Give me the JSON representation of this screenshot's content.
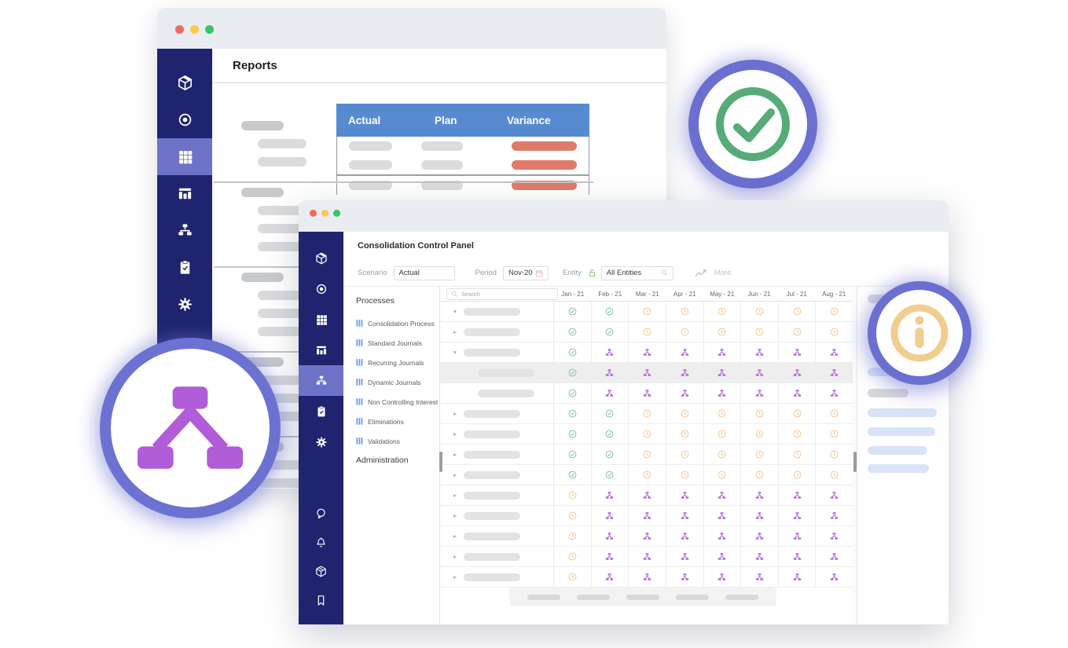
{
  "colors": {
    "sidebar_navy": "#20246e",
    "sidebar_active": "#6e73c8",
    "ring_purple": "#6a6fd0",
    "check_green": "#57ab79",
    "info_orange": "#f2cd90",
    "badge_purple": "#b15cd9",
    "table_header_blue": "#568bd2",
    "variance_salmon": "#e07b69",
    "status_check": "#7cc398",
    "status_clock": "#f3c78f",
    "status_hier": "#b269dd",
    "process_icon": "#6f9ceb",
    "traffic_red": "#f2695e",
    "traffic_yellow": "#fbc94b",
    "traffic_green": "#35c56d"
  },
  "back_window": {
    "page_title": "Reports",
    "sidebar_icons": [
      "cube",
      "target",
      "grid",
      "columns",
      "hierarchy",
      "clipboard",
      "gear"
    ],
    "sidebar_active_index": 2,
    "table_headers": [
      "Actual",
      "Plan",
      "Variance"
    ],
    "placeholder_sections": [
      2,
      3,
      3,
      3,
      2
    ],
    "table_row_count": 3
  },
  "front_window": {
    "page_title": "Consolidation Control Panel",
    "toolbar": {
      "scenario_label": "Scenario",
      "scenario_value": "Actual",
      "period_label": "Period",
      "period_value": "Nov-20",
      "entity_label": "Entity",
      "entity_value": "All Entities",
      "more_label": "More"
    },
    "sidebar_icons_top": [
      "cube",
      "target",
      "grid",
      "columns",
      "hierarchy",
      "clipboard",
      "gear"
    ],
    "sidebar_active_index": 4,
    "sidebar_icons_bottom": [
      "chat",
      "bell",
      "box",
      "bookmark"
    ],
    "processes": {
      "section_title": "Processes",
      "items": [
        "Consolidation Process",
        "Standard Journals",
        "Recurring Journals",
        "Dynamic Journals",
        "Non Controlling Interest",
        "Eliminations",
        "Validations"
      ],
      "admin_title": "Administration"
    },
    "grid": {
      "search_placeholder": "Search",
      "month_columns": [
        "Jan - 21",
        "Feb - 21",
        "Mar - 21",
        "Apr - 21",
        "May - 21",
        "Jun - 21",
        "Jul - 21",
        "Aug - 21"
      ],
      "pagination_pill_count": 5,
      "rows": [
        {
          "arrow": "down",
          "indent": 0,
          "selected": false,
          "statuses": [
            "check",
            "check",
            "clock",
            "clock",
            "clock",
            "clock",
            "clock",
            "clock"
          ]
        },
        {
          "arrow": "right",
          "indent": 0,
          "selected": false,
          "statuses": [
            "check",
            "check",
            "clock",
            "clock",
            "clock",
            "clock",
            "clock",
            "clock"
          ]
        },
        {
          "arrow": "down",
          "indent": 0,
          "selected": false,
          "statuses": [
            "check",
            "hier",
            "hier",
            "hier",
            "hier",
            "hier",
            "hier",
            "hier"
          ]
        },
        {
          "arrow": "none",
          "indent": 1,
          "selected": true,
          "statuses": [
            "check",
            "hier",
            "hier",
            "hier",
            "hier",
            "hier",
            "hier",
            "hier"
          ]
        },
        {
          "arrow": "none",
          "indent": 1,
          "selected": false,
          "statuses": [
            "check",
            "hier",
            "hier",
            "hier",
            "hier",
            "hier",
            "hier",
            "hier"
          ]
        },
        {
          "arrow": "right",
          "indent": 0,
          "selected": false,
          "statuses": [
            "check",
            "check",
            "clock",
            "clock",
            "clock",
            "clock",
            "clock",
            "clock"
          ]
        },
        {
          "arrow": "right",
          "indent": 0,
          "selected": false,
          "statuses": [
            "check",
            "check",
            "clock",
            "clock",
            "clock",
            "clock",
            "clock",
            "clock"
          ]
        },
        {
          "arrow": "right",
          "indent": 0,
          "selected": false,
          "statuses": [
            "check",
            "check",
            "clock",
            "clock",
            "clock",
            "clock",
            "clock",
            "clock"
          ]
        },
        {
          "arrow": "right",
          "indent": 0,
          "selected": false,
          "statuses": [
            "check",
            "check",
            "clock",
            "clock",
            "clock",
            "clock",
            "clock",
            "clock"
          ]
        },
        {
          "arrow": "right",
          "indent": 0,
          "selected": false,
          "statuses": [
            "clock",
            "hier",
            "hier",
            "hier",
            "hier",
            "hier",
            "hier",
            "hier"
          ]
        },
        {
          "arrow": "right",
          "indent": 0,
          "selected": false,
          "statuses": [
            "clock",
            "hier",
            "hier",
            "hier",
            "hier",
            "hier",
            "hier",
            "hier"
          ]
        },
        {
          "arrow": "right",
          "indent": 0,
          "selected": false,
          "statuses": [
            "clock",
            "hier",
            "hier",
            "hier",
            "hier",
            "hier",
            "hier",
            "hier"
          ]
        },
        {
          "arrow": "right",
          "indent": 0,
          "selected": false,
          "statuses": [
            "clock",
            "hier",
            "hier",
            "hier",
            "hier",
            "hier",
            "hier",
            "hier"
          ]
        },
        {
          "arrow": "right",
          "indent": 0,
          "selected": false,
          "statuses": [
            "clock",
            "hier",
            "hier",
            "hier",
            "hier",
            "hier",
            "hier",
            "hier"
          ]
        }
      ]
    },
    "right_panel_bars": [
      {
        "tone": "gray"
      },
      {
        "tone": "blue"
      },
      {
        "tone": "gray"
      },
      {
        "tone": "blue"
      },
      {
        "tone": "blue"
      },
      {
        "tone": "blue"
      },
      {
        "tone": "blue"
      }
    ]
  },
  "badges": {
    "check": {
      "name": "check-badge"
    },
    "info": {
      "name": "info-badge"
    },
    "hierarchy": {
      "name": "hierarchy-badge"
    }
  }
}
